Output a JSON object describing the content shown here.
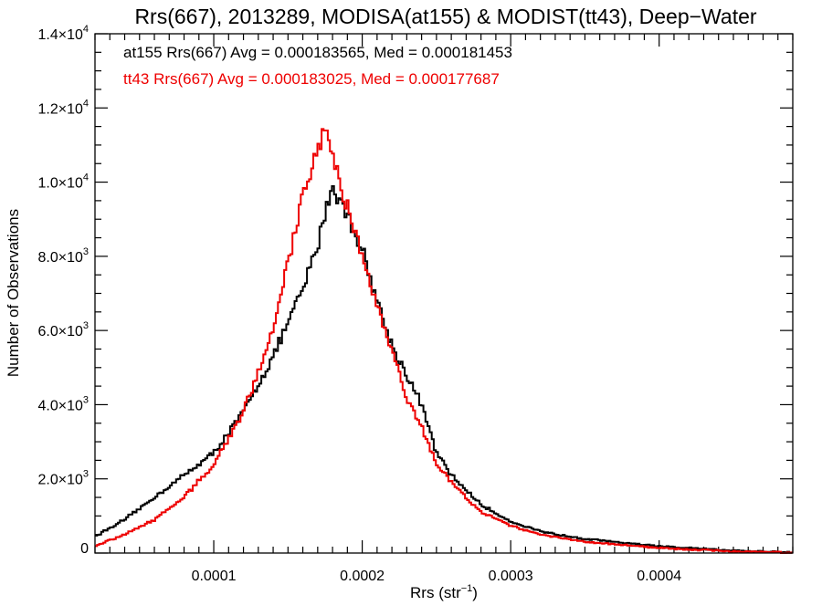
{
  "chart_data": {
    "type": "histogram",
    "title": "Rrs(667), 2013289, MODISA(at155) & MODIST(tt43), Deep−Water",
    "xlabel_main": "Rrs (str",
    "xlabel_sup": "−1",
    "xlabel_end": ")",
    "ylabel": "Number of Observations",
    "xlim": [
      2e-05,
      0.00049
    ],
    "ylim": [
      0,
      14000
    ],
    "x_ticks": [
      {
        "value": 0.0001,
        "label": "0.0001"
      },
      {
        "value": 0.0002,
        "label": "0.0002"
      },
      {
        "value": 0.0003,
        "label": "0.0003"
      },
      {
        "value": 0.0004,
        "label": "0.0004"
      }
    ],
    "y_ticks": [
      {
        "value": 0,
        "mant": "0",
        "exp": ""
      },
      {
        "value": 2000,
        "mant": "2.0×10",
        "exp": "3"
      },
      {
        "value": 4000,
        "mant": "4.0×10",
        "exp": "3"
      },
      {
        "value": 6000,
        "mant": "6.0×10",
        "exp": "3"
      },
      {
        "value": 8000,
        "mant": "8.0×10",
        "exp": "3"
      },
      {
        "value": 10000,
        "mant": "1.0×10",
        "exp": "4"
      },
      {
        "value": 12000,
        "mant": "1.2×10",
        "exp": "4"
      },
      {
        "value": 14000,
        "mant": "1.4×10",
        "exp": "4"
      }
    ],
    "annotations": [
      {
        "text": "at155 Rrs(667) Avg = 0.000183565, Med = 0.000181453",
        "color": "#000000"
      },
      {
        "text": "tt43 Rrs(667) Avg = 0.000183025, Med = 0.000177687",
        "color": "#ee0000"
      }
    ],
    "series": [
      {
        "color": "#000000",
        "points": [
          [
            2e-05,
            450
          ],
          [
            4e-05,
            900
          ],
          [
            6e-05,
            1500
          ],
          [
            8e-05,
            2100
          ],
          [
            0.0001,
            2700
          ],
          [
            0.00012,
            3800
          ],
          [
            0.00014,
            5300
          ],
          [
            0.00016,
            7100
          ],
          [
            0.00017,
            8300
          ],
          [
            0.000175,
            9200
          ],
          [
            0.00018,
            9900
          ],
          [
            0.000185,
            9500
          ],
          [
            0.00019,
            9100
          ],
          [
            0.0002,
            8200
          ],
          [
            0.00021,
            6800
          ],
          [
            0.00022,
            5600
          ],
          [
            0.00023,
            4800
          ],
          [
            0.00024,
            4000
          ],
          [
            0.00025,
            2700
          ],
          [
            0.00026,
            2100
          ],
          [
            0.00028,
            1300
          ],
          [
            0.0003,
            850
          ],
          [
            0.00032,
            580
          ],
          [
            0.00035,
            380
          ],
          [
            0.0004,
            180
          ],
          [
            0.00045,
            60
          ],
          [
            0.00049,
            20
          ]
        ]
      },
      {
        "color": "#ee0000",
        "points": [
          [
            2e-05,
            200
          ],
          [
            4e-05,
            500
          ],
          [
            6e-05,
            900
          ],
          [
            8e-05,
            1500
          ],
          [
            0.0001,
            2400
          ],
          [
            0.00012,
            3800
          ],
          [
            0.00014,
            6000
          ],
          [
            0.00016,
            9600
          ],
          [
            0.00017,
            11000
          ],
          [
            0.000175,
            11400
          ],
          [
            0.00018,
            10800
          ],
          [
            0.00019,
            9300
          ],
          [
            0.0002,
            8000
          ],
          [
            0.00021,
            6700
          ],
          [
            0.00022,
            5500
          ],
          [
            0.00023,
            4200
          ],
          [
            0.00024,
            3400
          ],
          [
            0.00025,
            2400
          ],
          [
            0.00026,
            1900
          ],
          [
            0.00028,
            1100
          ],
          [
            0.0003,
            750
          ],
          [
            0.00032,
            500
          ],
          [
            0.00035,
            300
          ],
          [
            0.0004,
            140
          ],
          [
            0.00045,
            40
          ],
          [
            0.00049,
            10
          ]
        ]
      }
    ]
  }
}
